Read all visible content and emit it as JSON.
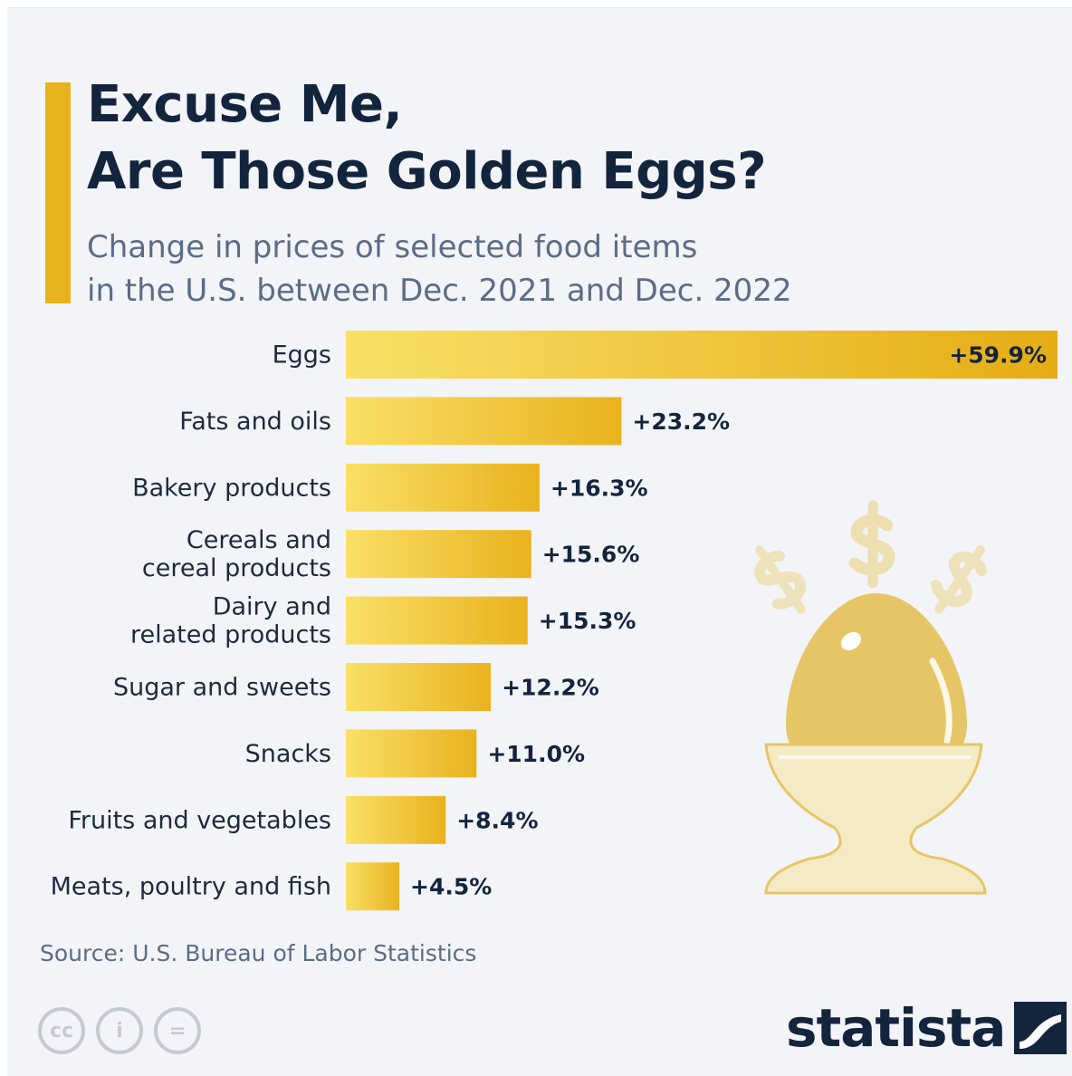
{
  "header": {
    "title_line1": "Excuse Me,",
    "title_line2": "Are Those Golden Eggs?",
    "subtitle_line1": "Change in prices of selected food items",
    "subtitle_line2": "in the U.S. between Dec. 2021 and Dec. 2022"
  },
  "chart_data": {
    "type": "bar",
    "orientation": "horizontal",
    "categories": [
      [
        "Eggs"
      ],
      [
        "Fats and oils"
      ],
      [
        "Bakery products"
      ],
      [
        "Cereals and",
        "cereal products"
      ],
      [
        "Dairy and",
        "related products"
      ],
      [
        "Sugar and sweets"
      ],
      [
        "Snacks"
      ],
      [
        "Fruits and vegetables"
      ],
      [
        "Meats, poultry and fish"
      ]
    ],
    "values": [
      59.9,
      23.2,
      16.3,
      15.6,
      15.3,
      12.2,
      11.0,
      8.4,
      4.5
    ],
    "value_labels": [
      "+59.9%",
      "+23.2%",
      "+16.3%",
      "+15.6%",
      "+15.3%",
      "+12.2%",
      "+11.0%",
      "+8.4%",
      "+4.5%"
    ],
    "xlim": [
      0,
      59.9
    ],
    "grid": false,
    "colors": {
      "bar_start": "#f9e066",
      "bar_end": "#e9b21e",
      "highlight_end": "#e5ac14"
    }
  },
  "footer": {
    "source": "Source: U.S. Bureau of Labor Statistics",
    "license_icons": [
      "cc-icon",
      "attribution-icon",
      "no-derivatives-icon"
    ],
    "license_glyphs": [
      "cc",
      "i",
      "="
    ],
    "brand": "statista"
  },
  "colors": {
    "background": "#f3f4f8",
    "accent": "#e8b21c",
    "title": "#13243d",
    "subtitle": "#5b6c86"
  }
}
